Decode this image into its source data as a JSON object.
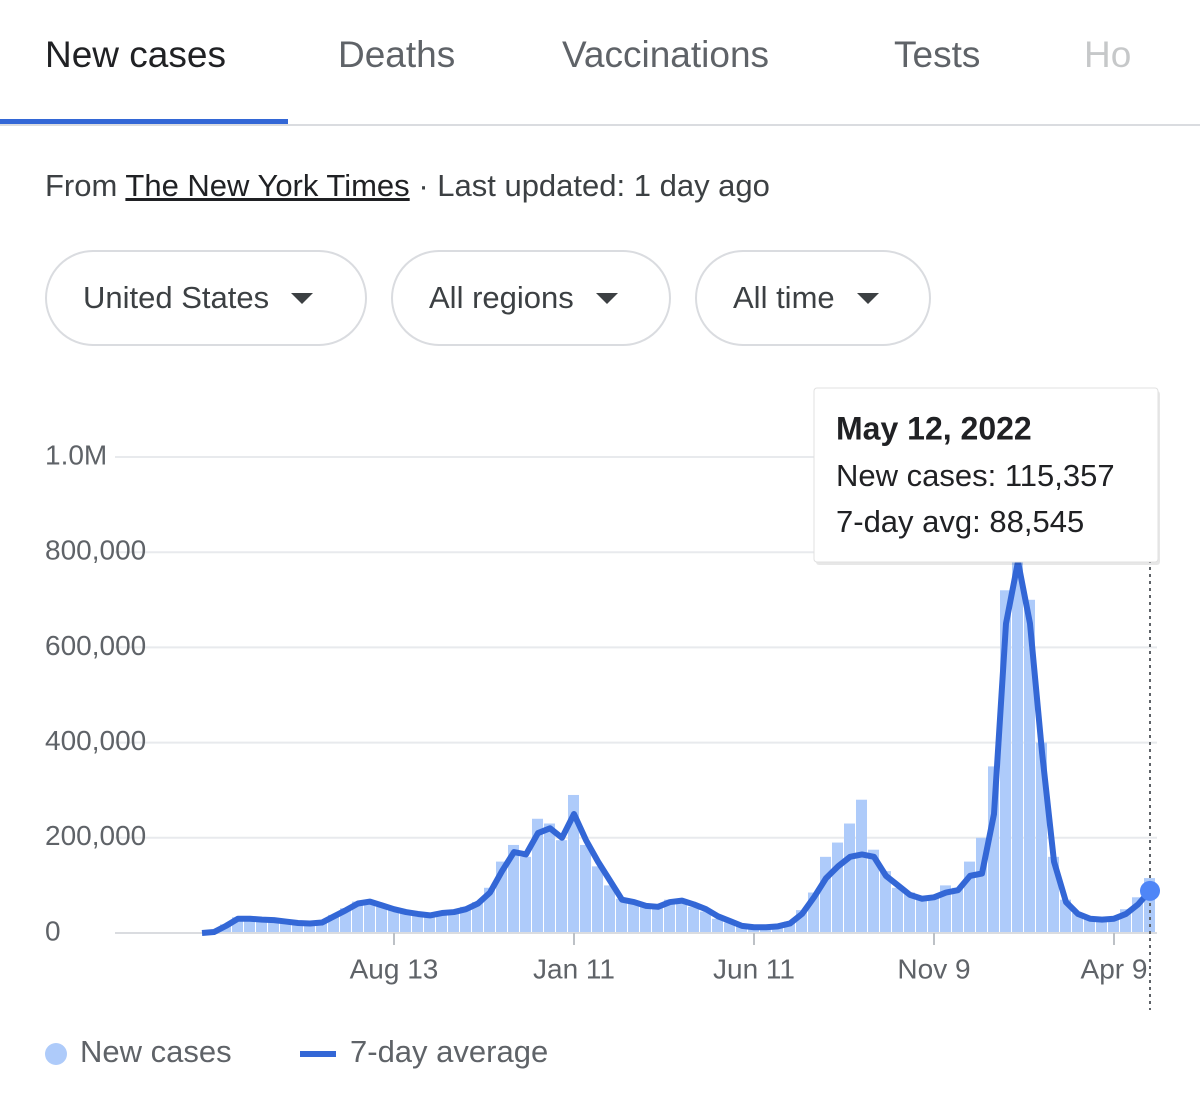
{
  "tabs": [
    "New cases",
    "Deaths",
    "Vaccinations",
    "Tests",
    "Ho"
  ],
  "source": {
    "prefix": "From",
    "link": "The New York Times",
    "suffix": "· Last updated: 1 day ago"
  },
  "filters": [
    "United States",
    "All regions",
    "All time"
  ],
  "tooltip": {
    "date": "May 12, 2022",
    "lines": [
      "New cases: 115,357",
      "7-day avg: 88,545"
    ]
  },
  "chart_data": {
    "type": "bar-line",
    "categories": [
      null,
      null,
      null,
      null,
      null,
      null,
      null,
      null,
      null,
      null,
      null,
      null,
      null,
      null,
      null,
      null,
      "Aug 13",
      null,
      null,
      null,
      null,
      null,
      null,
      null,
      null,
      null,
      null,
      null,
      null,
      null,
      null,
      "Jan 11",
      null,
      null,
      null,
      null,
      null,
      null,
      null,
      null,
      null,
      null,
      null,
      null,
      null,
      null,
      "Jun 11",
      null,
      null,
      null,
      null,
      null,
      null,
      null,
      null,
      null,
      null,
      null,
      null,
      null,
      null,
      "Nov 9",
      null,
      null,
      null,
      null,
      null,
      null,
      null,
      null,
      null,
      null,
      null,
      null,
      null,
      null,
      "Apr 9",
      null,
      null,
      null
    ],
    "series": [
      {
        "name": "New cases",
        "color": "#aecbfa",
        "values": [
          0,
          3000,
          18000,
          33000,
          31000,
          26000,
          29000,
          23000,
          22000,
          19000,
          24000,
          38000,
          52000,
          66000,
          68000,
          55000,
          49000,
          46000,
          38000,
          39000,
          45000,
          43000,
          55000,
          65000,
          95000,
          150000,
          185000,
          160000,
          240000,
          230000,
          195000,
          290000,
          185000,
          140000,
          100000,
          72000,
          62000,
          60000,
          52000,
          70000,
          65000,
          55000,
          45000,
          30000,
          22000,
          15000,
          11000,
          13000,
          15000,
          24000,
          48000,
          85000,
          160000,
          190000,
          230000,
          280000,
          175000,
          130000,
          95000,
          85000,
          70000,
          80000,
          100000,
          95000,
          150000,
          200000,
          350000,
          720000,
          810000,
          700000,
          400000,
          160000,
          70000,
          42000,
          30000,
          29000,
          33000,
          50000,
          75000,
          115357
        ]
      },
      {
        "name": "7-day average",
        "color": "#3367d6",
        "values": [
          0,
          2000,
          15000,
          30000,
          30000,
          28000,
          27000,
          24000,
          21000,
          20000,
          22000,
          35000,
          48000,
          62000,
          66000,
          58000,
          50000,
          44000,
          40000,
          37000,
          42000,
          44000,
          50000,
          62000,
          85000,
          130000,
          170000,
          165000,
          210000,
          220000,
          200000,
          250000,
          195000,
          150000,
          110000,
          70000,
          65000,
          57000,
          55000,
          65000,
          68000,
          60000,
          50000,
          35000,
          25000,
          15000,
          12000,
          12000,
          14000,
          20000,
          40000,
          75000,
          115000,
          140000,
          160000,
          165000,
          160000,
          120000,
          100000,
          80000,
          72000,
          75000,
          85000,
          90000,
          120000,
          125000,
          250000,
          650000,
          780000,
          650000,
          380000,
          150000,
          65000,
          40000,
          30000,
          28000,
          30000,
          40000,
          60000,
          88545
        ]
      }
    ],
    "ylim": [
      0,
      1000000
    ],
    "yticks": [
      0,
      {
        "value": 200000,
        "label": "200,000"
      },
      {
        "value": 400000,
        "label": "400,000"
      },
      {
        "value": 600000,
        "label": "600,000"
      },
      {
        "value": 800000,
        "label": "800,000"
      },
      {
        "value": 1000000,
        "label": "1.0M"
      }
    ],
    "grid": true
  }
}
